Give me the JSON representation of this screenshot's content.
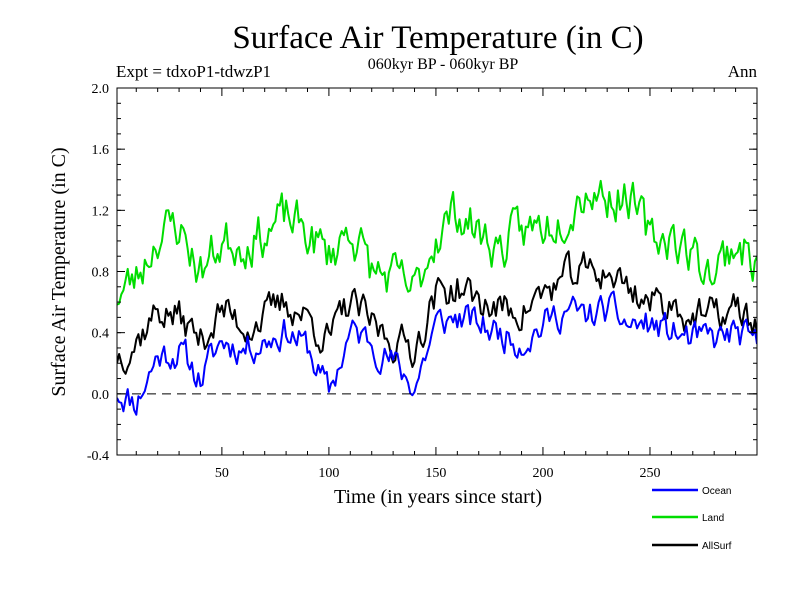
{
  "chart_data": {
    "type": "line",
    "title": "Surface Air Temperature (in C)",
    "subtitle": "060kyr BP - 060kyr BP",
    "experiment_label": "Expt = tdxoP1-tdwzP1",
    "period_label": "Ann",
    "xlabel": "Time (in years since start)",
    "ylabel": "Surface Air Temperature (in C)",
    "xlim": [
      1,
      300
    ],
    "ylim": [
      -0.4,
      2.0
    ],
    "x_ticks": [
      50,
      100,
      150,
      200,
      250
    ],
    "y_ticks": [
      "-0.4",
      "0.0",
      "0.4",
      "0.8",
      "1.2",
      "1.6",
      "2.0"
    ],
    "zero_line": true,
    "legend_position": "bottom-right",
    "series_anchors_note": "approximate smoothed anchor values read off the plot every 10 years",
    "x_anchors": [
      1,
      10,
      20,
      30,
      40,
      50,
      60,
      70,
      80,
      90,
      100,
      110,
      120,
      130,
      140,
      150,
      160,
      170,
      180,
      190,
      200,
      210,
      220,
      230,
      240,
      250,
      260,
      270,
      280,
      290,
      300
    ],
    "series": [
      {
        "name": "Ocean",
        "color": "#0000ff",
        "values": [
          0.02,
          -0.05,
          0.25,
          0.28,
          0.1,
          0.35,
          0.3,
          0.35,
          0.42,
          0.3,
          0.0,
          0.4,
          0.35,
          0.2,
          0.05,
          0.45,
          0.5,
          0.45,
          0.4,
          0.35,
          0.45,
          0.55,
          0.5,
          0.55,
          0.45,
          0.45,
          0.4,
          0.35,
          0.35,
          0.4,
          0.3
        ],
        "seed": 11,
        "noise": 0.09
      },
      {
        "name": "Land",
        "color": "#00dd00",
        "values": [
          0.65,
          0.75,
          1.05,
          1.1,
          0.8,
          1.0,
          1.0,
          1.05,
          1.15,
          1.05,
          0.9,
          1.1,
          0.8,
          0.75,
          0.65,
          1.05,
          1.2,
          1.05,
          0.95,
          1.05,
          1.1,
          1.2,
          1.35,
          1.3,
          1.3,
          1.0,
          1.05,
          0.9,
          0.8,
          1.0,
          0.85
        ],
        "seed": 23,
        "noise": 0.13
      },
      {
        "name": "AllSurf",
        "color": "#000000",
        "values": [
          0.25,
          0.35,
          0.55,
          0.5,
          0.35,
          0.55,
          0.45,
          0.5,
          0.6,
          0.5,
          0.35,
          0.6,
          0.45,
          0.35,
          0.3,
          0.65,
          0.7,
          0.6,
          0.55,
          0.55,
          0.65,
          0.75,
          0.8,
          0.8,
          0.7,
          0.6,
          0.6,
          0.5,
          0.5,
          0.55,
          0.45
        ],
        "seed": 37,
        "noise": 0.1
      }
    ]
  }
}
